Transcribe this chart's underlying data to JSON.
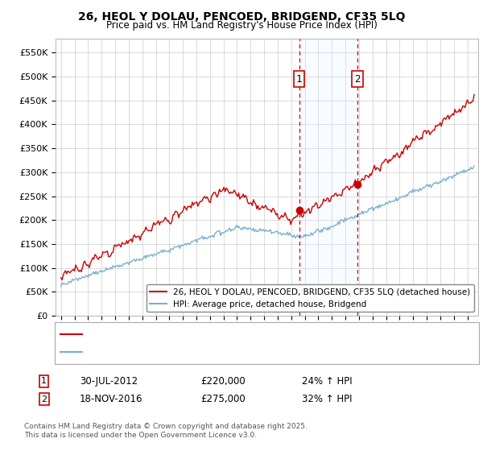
{
  "title_line1": "26, HEOL Y DOLAU, PENCOED, BRIDGEND, CF35 5LQ",
  "title_line2": "Price paid vs. HM Land Registry's House Price Index (HPI)",
  "legend_label_red": "26, HEOL Y DOLAU, PENCOED, BRIDGEND, CF35 5LQ (detached house)",
  "legend_label_blue": "HPI: Average price, detached house, Bridgend",
  "annotation1_label": "1",
  "annotation1_date": "30-JUL-2012",
  "annotation1_price": "£220,000",
  "annotation1_hpi": "24% ↑ HPI",
  "annotation2_label": "2",
  "annotation2_date": "18-NOV-2016",
  "annotation2_price": "£275,000",
  "annotation2_hpi": "32% ↑ HPI",
  "footer": "Contains HM Land Registry data © Crown copyright and database right 2025.\nThis data is licensed under the Open Government Licence v3.0.",
  "ylim": [
    0,
    580000
  ],
  "yticks": [
    0,
    50000,
    100000,
    150000,
    200000,
    250000,
    300000,
    350000,
    400000,
    450000,
    500000,
    550000
  ],
  "ytick_labels": [
    "£0",
    "£50K",
    "£100K",
    "£150K",
    "£200K",
    "£250K",
    "£300K",
    "£350K",
    "£400K",
    "£450K",
    "£500K",
    "£550K"
  ],
  "marker1_x": 2012.58,
  "marker1_y": 220000,
  "marker2_x": 2016.88,
  "marker2_y": 275000,
  "shaded_xmin": 2012.58,
  "shaded_xmax": 2016.88,
  "red_color": "#cc0000",
  "blue_color": "#7aadcf",
  "shaded_color": "#ddeeff",
  "xlim_left": 1994.6,
  "xlim_right": 2025.8
}
